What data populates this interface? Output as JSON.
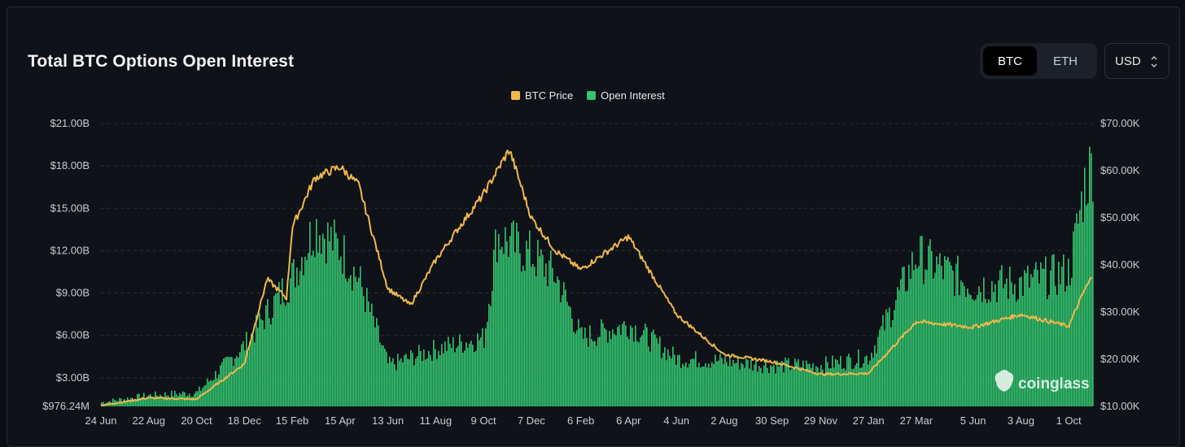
{
  "header": {
    "title": "Total BTC Options Open Interest",
    "asset_tabs": [
      {
        "label": "BTC",
        "active": true
      },
      {
        "label": "ETH",
        "active": false
      }
    ],
    "currency": "USD"
  },
  "watermark": "coinglass",
  "colors": {
    "price": "#f0b84a",
    "open_interest": "#32c46f",
    "grid": "#2a2f38",
    "text": "#c8ccd3"
  },
  "chart_data": {
    "type": "area",
    "title": "Total BTC Options Open Interest",
    "legend": [
      {
        "name": "BTC Price",
        "color": "#f0b84a"
      },
      {
        "name": "Open Interest",
        "color": "#32c46f"
      }
    ],
    "legend_position": "top-center",
    "grid": true,
    "x_tick_labels": [
      "24 Jun",
      "22 Aug",
      "20 Oct",
      "18 Dec",
      "15 Feb",
      "15 Apr",
      "13 Jun",
      "11 Aug",
      "9 Oct",
      "7 Dec",
      "6 Feb",
      "6 Apr",
      "4 Jun",
      "2 Aug",
      "30 Sep",
      "29 Nov",
      "27 Jan",
      "27 Mar",
      "5 Jun",
      "3 Aug",
      "1 Oct"
    ],
    "y_left": {
      "ticks": [
        "$21.00B",
        "$18.00B",
        "$15.00B",
        "$12.00B",
        "$9.00B",
        "$6.00B",
        "$3.00B",
        "$976.24M"
      ],
      "tick_values": [
        21,
        18,
        15,
        12,
        9,
        6,
        3,
        0.97624
      ],
      "range": [
        0.97624,
        21
      ],
      "unit": "B USD"
    },
    "y_right": {
      "ticks": [
        "$70.00K",
        "$60.00K",
        "$50.00K",
        "$40.00K",
        "$30.00K",
        "$20.00K",
        "$10.00K"
      ],
      "tick_values": [
        70,
        60,
        50,
        40,
        30,
        20,
        10
      ],
      "range": [
        10,
        70
      ],
      "unit": "K USD"
    },
    "series": [
      {
        "name": "Open Interest",
        "axis": "left",
        "points": [
          [
            "24 Jun",
            1.3
          ],
          [
            "22 Aug",
            1.8
          ],
          [
            "20 Oct",
            2.0
          ],
          [
            "18 Dec",
            5.5
          ],
          [
            "15 Feb",
            10.5
          ],
          [
            "15 Mar",
            14.2
          ],
          [
            "15 Apr",
            12.5
          ],
          [
            "8 May",
            10.2
          ],
          [
            "13 Jun",
            4.0
          ],
          [
            "11 Aug",
            5.2
          ],
          [
            "9 Oct",
            6.0
          ],
          [
            "25 Oct",
            13.5
          ],
          [
            "7 Dec",
            12.0
          ],
          [
            "6 Jan",
            10.5
          ],
          [
            "6 Feb",
            6.0
          ],
          [
            "6 Apr",
            7.0
          ],
          [
            "4 Jun",
            4.5
          ],
          [
            "2 Aug",
            4.3
          ],
          [
            "30 Sep",
            4.0
          ],
          [
            "29 Nov",
            4.0
          ],
          [
            "27 Jan",
            4.6
          ],
          [
            "27 Mar",
            12.0
          ],
          [
            "5 Jun",
            9.8
          ],
          [
            "3 Aug",
            10.0
          ],
          [
            "1 Oct",
            10.8
          ],
          [
            "20 Oct",
            17.2
          ],
          [
            "31 Oct",
            19.0
          ]
        ]
      },
      {
        "name": "BTC Price",
        "axis": "right",
        "points": [
          [
            "24 Jun",
            10.2
          ],
          [
            "22 Aug",
            11.8
          ],
          [
            "20 Oct",
            11.5
          ],
          [
            "18 Dec",
            19.0
          ],
          [
            "15 Jan",
            37.0
          ],
          [
            "8 Feb",
            33.0
          ],
          [
            "15 Feb",
            48.0
          ],
          [
            "15 Mar",
            58.5
          ],
          [
            "15 Apr",
            60.8
          ],
          [
            "8 May",
            57.0
          ],
          [
            "13 Jun",
            35.0
          ],
          [
            "11 Jul",
            31.5
          ],
          [
            "11 Aug",
            41.0
          ],
          [
            "9 Sep",
            48.0
          ],
          [
            "9 Oct",
            55.0
          ],
          [
            "10 Nov",
            64.5
          ],
          [
            "7 Dec",
            50.0
          ],
          [
            "6 Jan",
            43.0
          ],
          [
            "6 Feb",
            39.0
          ],
          [
            "6 Apr",
            46.0
          ],
          [
            "4 Jun",
            29.5
          ],
          [
            "2 Aug",
            21.0
          ],
          [
            "30 Sep",
            19.5
          ],
          [
            "29 Nov",
            16.8
          ],
          [
            "27 Jan",
            17.0
          ],
          [
            "27 Mar",
            28.0
          ],
          [
            "5 Jun",
            26.8
          ],
          [
            "3 Aug",
            29.5
          ],
          [
            "1 Oct",
            27.0
          ],
          [
            "20 Oct",
            34.5
          ],
          [
            "31 Oct",
            37.8
          ]
        ]
      }
    ]
  }
}
